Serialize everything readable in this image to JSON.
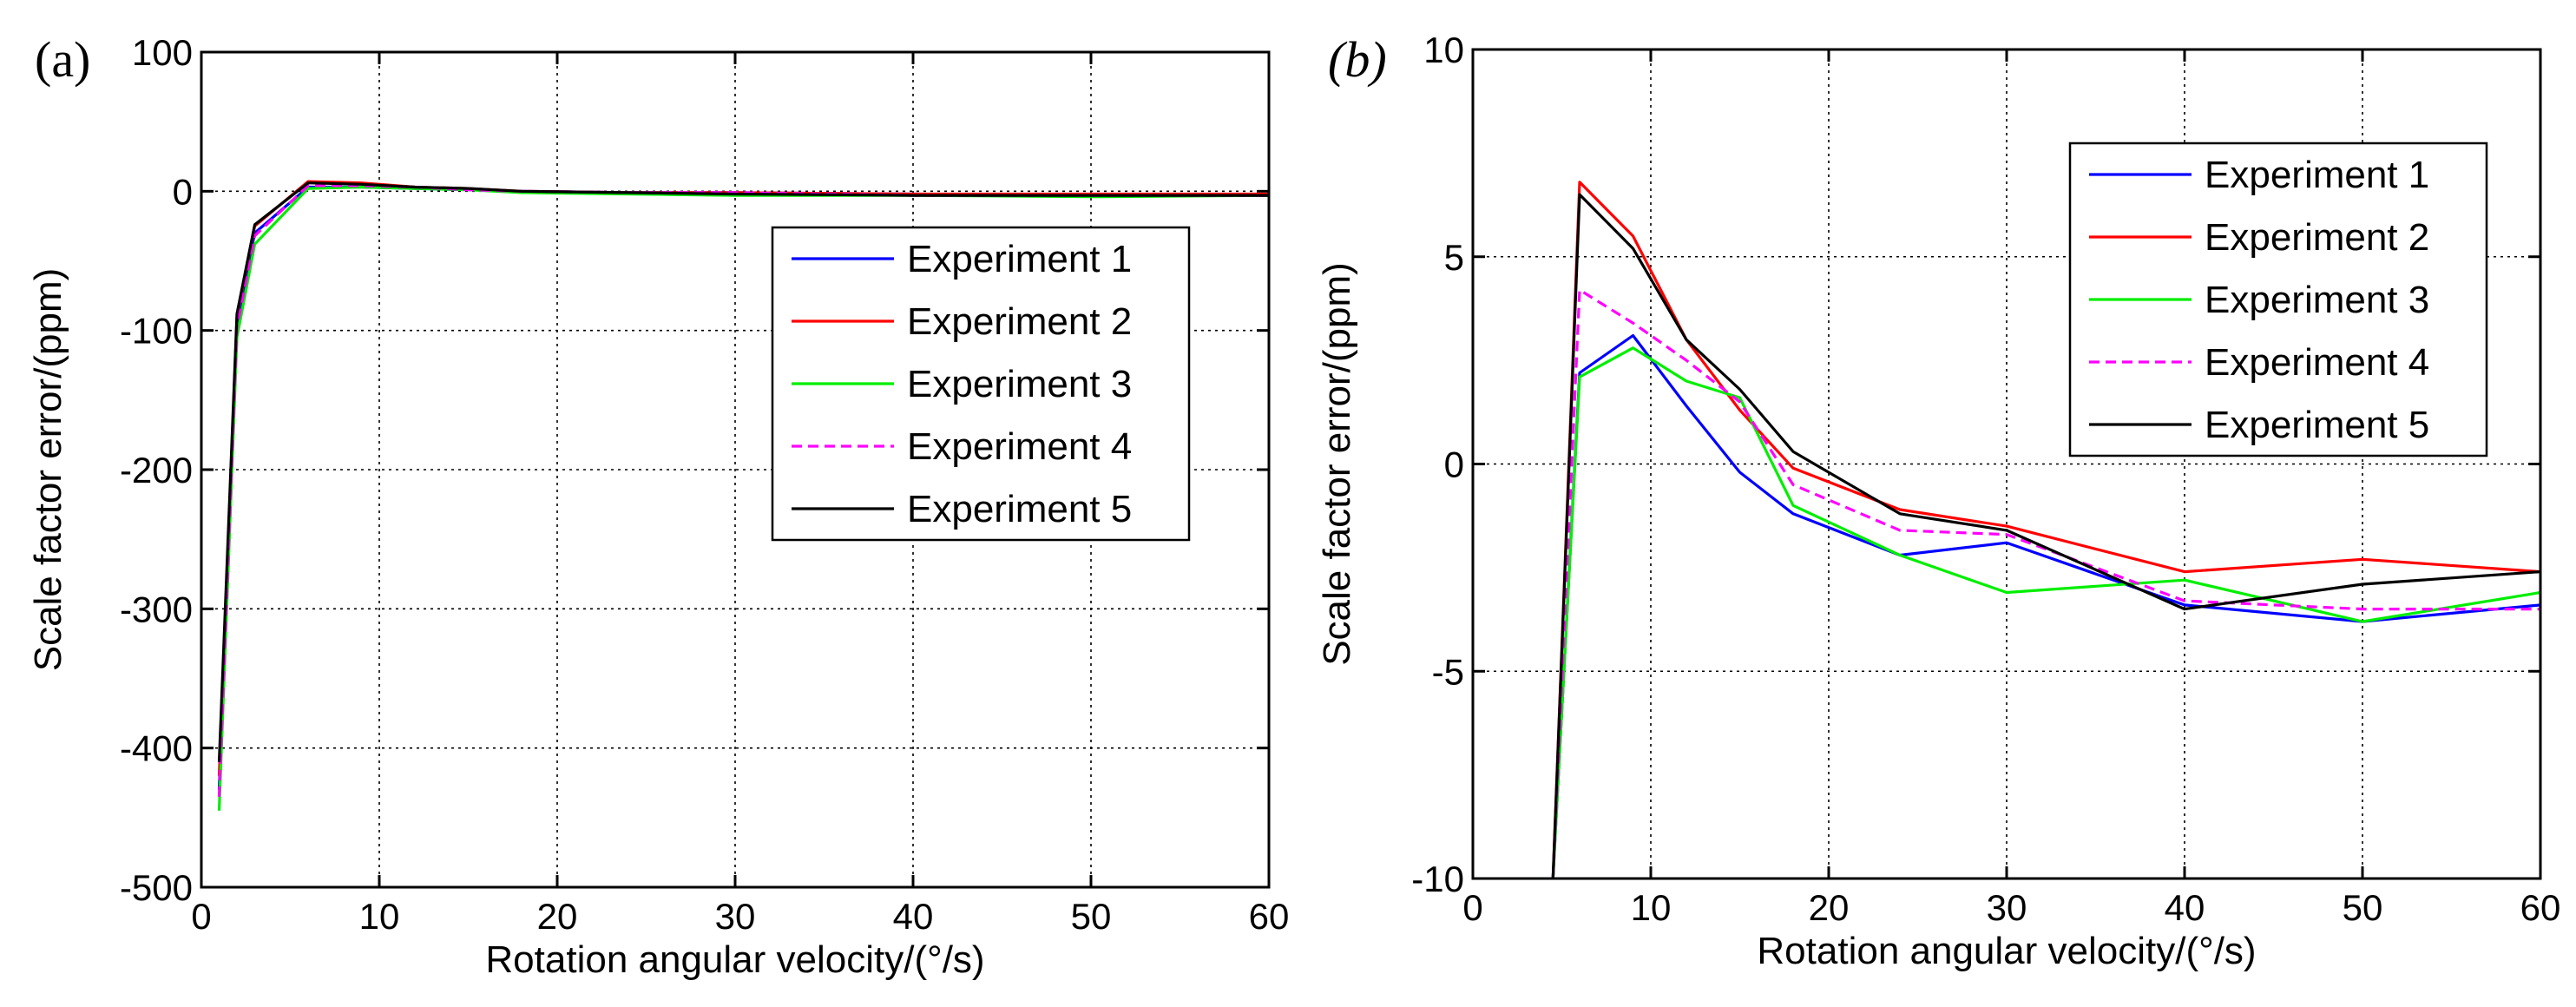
{
  "chart_data": [
    {
      "type": "line",
      "panel_label": "(a)",
      "xlabel": "Rotation angular velocity/(°/s)",
      "ylabel": "Scale factor error/(ppm)",
      "xlim": [
        0,
        60
      ],
      "ylim": [
        -500,
        100
      ],
      "xticks": [
        0,
        10,
        20,
        30,
        40,
        50,
        60
      ],
      "yticks": [
        100,
        0,
        -100,
        -200,
        -300,
        -400,
        -500
      ],
      "grid": true,
      "legend_position": "right-middle",
      "x": [
        1,
        2,
        3,
        6,
        9,
        12,
        15,
        18,
        24,
        30,
        40,
        50,
        60
      ],
      "series": [
        {
          "name": "Experiment 1",
          "color": "#0000ff",
          "dash": "solid",
          "values": [
            -430,
            -95,
            -30,
            3,
            3,
            2,
            1,
            0,
            -1,
            -1,
            -2,
            -3,
            -3
          ]
        },
        {
          "name": "Experiment 2",
          "color": "#ff0000",
          "dash": "solid",
          "values": [
            -420,
            -90,
            -25,
            7,
            6,
            3,
            2,
            0,
            -1,
            -1,
            -2,
            -2,
            -2
          ]
        },
        {
          "name": "Experiment 3",
          "color": "#00ee00",
          "dash": "solid",
          "values": [
            -445,
            -105,
            -38,
            2,
            3,
            2,
            1,
            -1,
            -2,
            -3,
            -3,
            -4,
            -3
          ]
        },
        {
          "name": "Experiment 4",
          "color": "#ff00ff",
          "dash": "dashed",
          "values": [
            -435,
            -98,
            -32,
            4,
            4,
            3,
            1,
            0,
            -1,
            -1,
            -3,
            -3,
            -3
          ]
        },
        {
          "name": "Experiment 5",
          "color": "#000000",
          "dash": "solid",
          "values": [
            -410,
            -88,
            -24,
            6,
            5,
            3,
            2,
            0,
            -1,
            -2,
            -3,
            -3,
            -3
          ]
        }
      ]
    },
    {
      "type": "line",
      "panel_label": "(b)",
      "xlabel": "Rotation angular velocity/(°/s)",
      "ylabel": "Scale factor error/(ppm)",
      "xlim": [
        0,
        60
      ],
      "ylim": [
        -10,
        10
      ],
      "xticks": [
        0,
        10,
        20,
        30,
        40,
        50,
        60
      ],
      "yticks": [
        10,
        5,
        0,
        -5,
        -10
      ],
      "grid": true,
      "legend_position": "top-right",
      "x": [
        4.5,
        6,
        9,
        12,
        15,
        18,
        24,
        30,
        40,
        50,
        60
      ],
      "series": [
        {
          "name": "Experiment 1",
          "color": "#0000ff",
          "dash": "solid",
          "values": [
            -10,
            2.2,
            3.1,
            1.4,
            -0.2,
            -1.2,
            -2.2,
            -1.9,
            -3.4,
            -3.8,
            -3.4
          ]
        },
        {
          "name": "Experiment 2",
          "color": "#ff0000",
          "dash": "solid",
          "values": [
            -10,
            6.8,
            5.5,
            3.0,
            1.3,
            -0.1,
            -1.1,
            -1.5,
            -2.6,
            -2.3,
            -2.6
          ]
        },
        {
          "name": "Experiment 3",
          "color": "#00ee00",
          "dash": "solid",
          "values": [
            -10,
            2.1,
            2.8,
            2.0,
            1.6,
            -1.0,
            -2.2,
            -3.1,
            -2.8,
            -3.8,
            -3.1
          ]
        },
        {
          "name": "Experiment 4",
          "color": "#ff00ff",
          "dash": "dashed",
          "values": [
            -10,
            4.2,
            3.4,
            2.5,
            1.5,
            -0.5,
            -1.6,
            -1.7,
            -3.3,
            -3.5,
            -3.5
          ]
        },
        {
          "name": "Experiment 5",
          "color": "#000000",
          "dash": "solid",
          "values": [
            -10,
            6.5,
            5.2,
            3.0,
            1.8,
            0.3,
            -1.2,
            -1.6,
            -3.5,
            -2.9,
            -2.6
          ]
        }
      ]
    }
  ]
}
